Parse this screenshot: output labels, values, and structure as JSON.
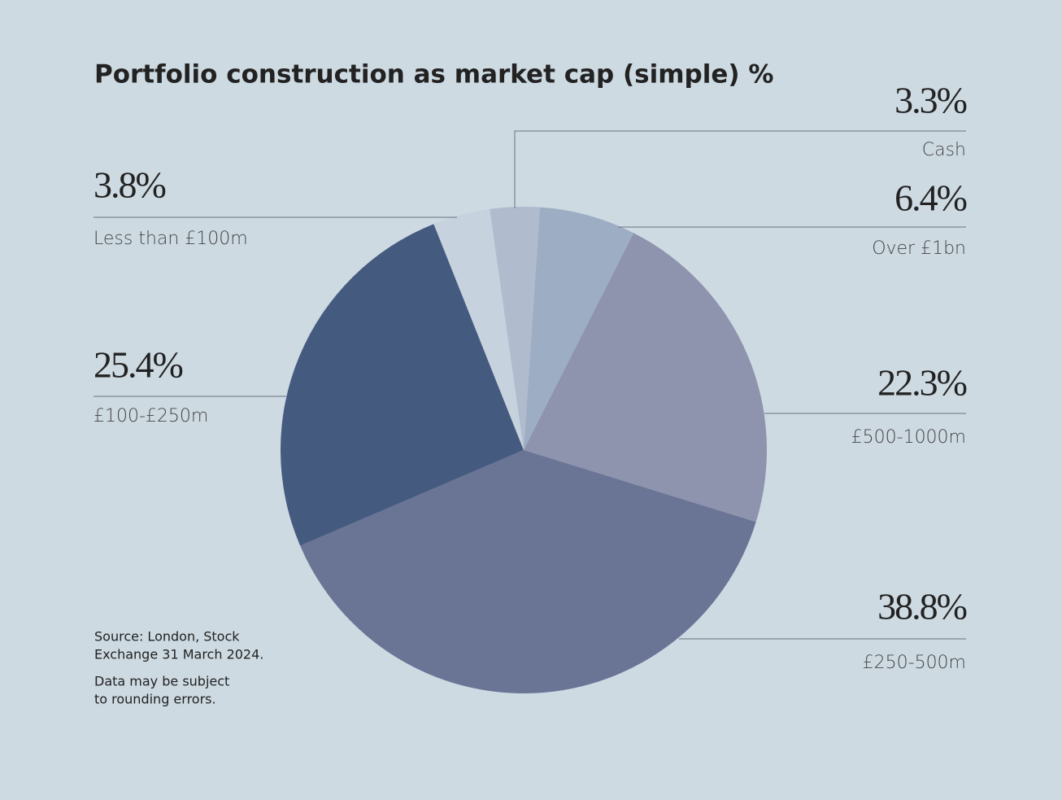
{
  "chart_data": {
    "type": "pie",
    "title": "Portfolio construction as market cap (simple) %",
    "categories": [
      "Over £1bn",
      "£500-1000m",
      "£250-500m",
      "£100-£250m",
      "Less than £100m",
      "Cash"
    ],
    "values": [
      6.4,
      22.3,
      38.8,
      25.4,
      3.8,
      3.3
    ],
    "value_labels": [
      "6.4%",
      "22.3%",
      "38.8%",
      "25.4%",
      "3.8%",
      "3.3%"
    ],
    "colors": [
      "#9dadc3",
      "#8e93ae",
      "#6a7596",
      "#455a7f",
      "#c6d3de",
      "#b0bccd"
    ],
    "notes": [
      [
        "Source: London, Stock",
        "Exchange 31 March 2024."
      ],
      [
        "Data may be subject",
        "to rounding errors."
      ]
    ]
  }
}
